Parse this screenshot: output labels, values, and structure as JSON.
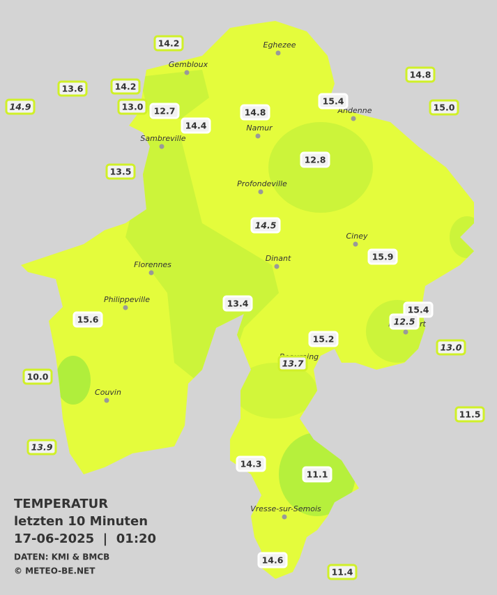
{
  "title": "TEMPERATUR",
  "subtitle": "letzten 10 Minuten",
  "timestamp": "17-06-2025  |  01:20",
  "credits": [
    "DATEN: KMI & BMCB",
    "© METEO-BE.NET"
  ],
  "towns": [
    "Eghezee",
    "Gembloux",
    "Andenne",
    "Namur",
    "Sambreville",
    "Profondeville",
    "Ciney",
    "Dinant",
    "Florennes",
    "Philippeville",
    "Couvin",
    "Vresse-sur-Semois",
    "Beauraing",
    "Rochefort"
  ],
  "stations": [
    {
      "value": "14.2",
      "italic": false,
      "outline": "#d0f028"
    },
    {
      "value": "13.6",
      "italic": false,
      "outline": "#d0f028"
    },
    {
      "value": "14.9",
      "italic": true,
      "outline": "#d0f028"
    },
    {
      "value": "14.2",
      "italic": false,
      "outline": "#d0f028"
    },
    {
      "value": "13.0",
      "italic": false,
      "outline": "#d0f028"
    },
    {
      "value": "12.7",
      "italic": false,
      "outline": "#ffffff"
    },
    {
      "value": "14.4",
      "italic": false,
      "outline": "#ffffff"
    },
    {
      "value": "14.8",
      "italic": false,
      "outline": "#ffffff"
    },
    {
      "value": "15.4",
      "italic": false,
      "outline": "#ffffff"
    },
    {
      "value": "14.8",
      "italic": false,
      "outline": "#d0f028"
    },
    {
      "value": "15.0",
      "italic": false,
      "outline": "#d0f028"
    },
    {
      "value": "13.5",
      "italic": false,
      "outline": "#d0f028"
    },
    {
      "value": "12.8",
      "italic": false,
      "outline": "#ffffff"
    },
    {
      "value": "14.5",
      "italic": true,
      "outline": "#ffffff"
    },
    {
      "value": "15.9",
      "italic": false,
      "outline": "#ffffff"
    },
    {
      "value": "13.4",
      "italic": false,
      "outline": "#ffffff"
    },
    {
      "value": "15.4",
      "italic": false,
      "outline": "#ffffff"
    },
    {
      "value": "12.5",
      "italic": true,
      "outline": "#ffffff"
    },
    {
      "value": "13.0",
      "italic": true,
      "outline": "#d0f028"
    },
    {
      "value": "15.6",
      "italic": false,
      "outline": "#ffffff"
    },
    {
      "value": "15.2",
      "italic": false,
      "outline": "#ffffff"
    },
    {
      "value": "13.7",
      "italic": true,
      "outline": "#d0f028"
    },
    {
      "value": "10.0",
      "italic": false,
      "outline": "#d0f028"
    },
    {
      "value": "11.5",
      "italic": false,
      "outline": "#d0f028"
    },
    {
      "value": "13.9",
      "italic": true,
      "outline": "#d0f028"
    },
    {
      "value": "14.3",
      "italic": false,
      "outline": "#ffffff"
    },
    {
      "value": "11.1",
      "italic": false,
      "outline": "#ffffff"
    },
    {
      "value": "14.6",
      "italic": false,
      "outline": "#ffffff"
    },
    {
      "value": "11.4",
      "italic": false,
      "outline": "#d0f028"
    }
  ]
}
